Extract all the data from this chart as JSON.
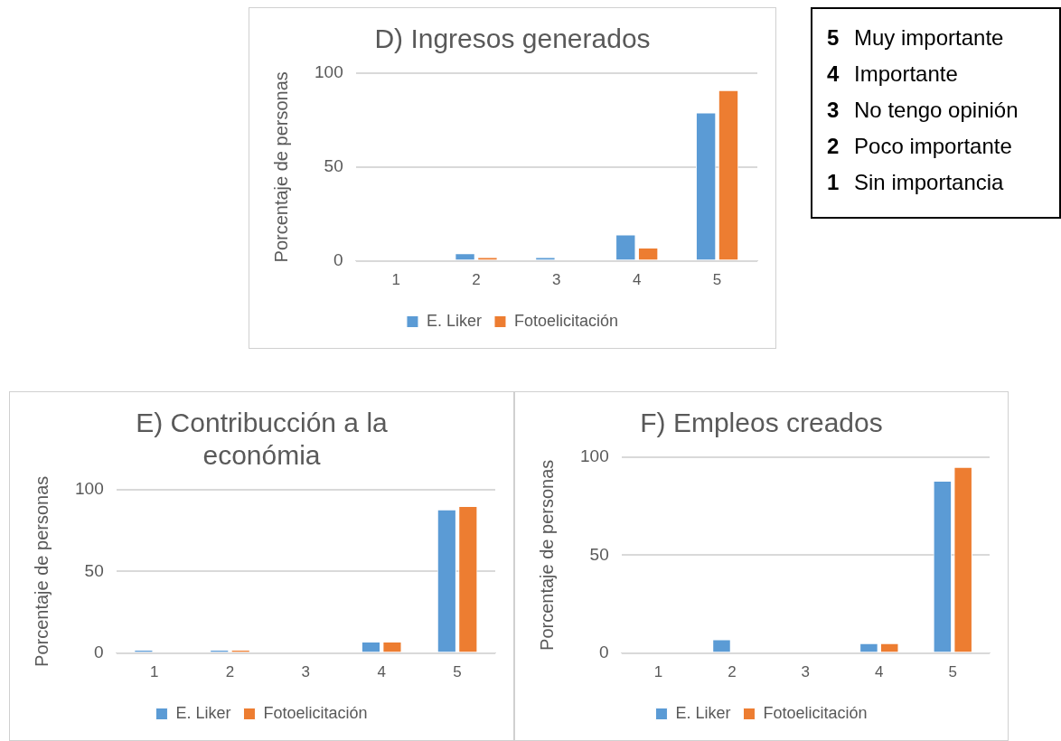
{
  "chart_data": [
    {
      "type": "bar",
      "title": "D) Ingresos generados",
      "ylabel": "Porcentaje de personas",
      "categories": [
        "1",
        "2",
        "3",
        "4",
        "5"
      ],
      "series": [
        {
          "name": "E. Liker",
          "color": "#5b9bd5",
          "values": [
            0,
            4,
            2,
            14,
            79
          ]
        },
        {
          "name": "Fotoelicitación",
          "color": "#ed7d31",
          "values": [
            0,
            2,
            0,
            7,
            91
          ]
        }
      ],
      "ylim": [
        0,
        100
      ],
      "yticks": [
        0,
        50,
        100
      ],
      "grid": "y",
      "legend": "bottom"
    },
    {
      "type": "other",
      "annotations": [
        "5 Muy importante",
        "4 Importante",
        "3 No tengo opinión",
        "2 Poco importante",
        "1 Sin importancia"
      ]
    },
    {
      "type": "bar",
      "title": "E) Contribucción a la económia",
      "ylabel": "Porcentaje de personas",
      "categories": [
        "1",
        "2",
        "3",
        "4",
        "5"
      ],
      "series": [
        {
          "name": "E. Liker",
          "color": "#5b9bd5",
          "values": [
            2,
            2,
            0,
            7,
            88
          ]
        },
        {
          "name": "Fotoelicitación",
          "color": "#ed7d31",
          "values": [
            0,
            2,
            0,
            7,
            90
          ]
        }
      ],
      "ylim": [
        0,
        100
      ],
      "yticks": [
        0,
        50,
        100
      ],
      "grid": "y",
      "legend": "bottom"
    },
    {
      "type": "bar",
      "title": "F) Empleos creados",
      "ylabel": "Porcentaje de personas",
      "categories": [
        "1",
        "2",
        "3",
        "4",
        "5"
      ],
      "series": [
        {
          "name": "E. Liker",
          "color": "#5b9bd5",
          "values": [
            0,
            7,
            0,
            5,
            88
          ]
        },
        {
          "name": "Fotoelicitación",
          "color": "#ed7d31",
          "values": [
            0,
            0,
            0,
            5,
            95
          ]
        }
      ],
      "ylim": [
        0,
        100
      ],
      "yticks": [
        0,
        50,
        100
      ],
      "grid": "y",
      "legend": "bottom"
    }
  ]
}
